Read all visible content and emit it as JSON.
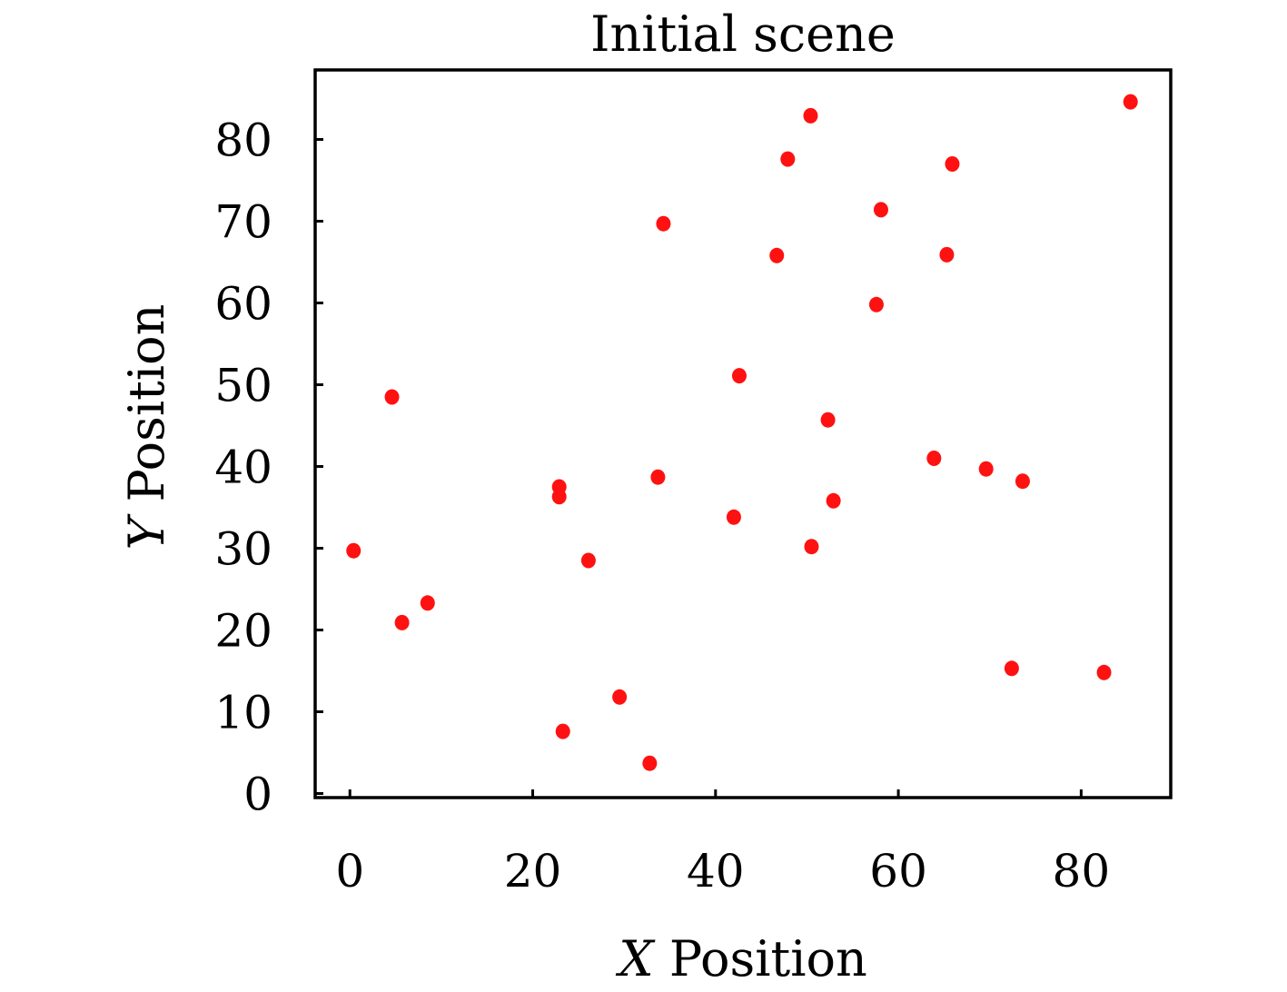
{
  "chart_data": {
    "type": "scatter",
    "title": "Initial scene",
    "xlabel_var": "X",
    "xlabel_rest": " Position",
    "ylabel_var": "Y",
    "ylabel_rest": " Position",
    "xlim": [
      -3.8,
      89.8
    ],
    "ylim": [
      -0.5,
      88.5
    ],
    "xticks": [
      0,
      20,
      40,
      60,
      80
    ],
    "yticks": [
      0,
      10,
      20,
      30,
      40,
      50,
      60,
      70,
      80
    ],
    "grid": false,
    "legend": "none",
    "point_color": "#ff1111",
    "series": [
      {
        "points": [
          {
            "x": 0.4,
            "y": 29.7
          },
          {
            "x": 4.6,
            "y": 48.5
          },
          {
            "x": 5.7,
            "y": 20.9
          },
          {
            "x": 8.5,
            "y": 23.3
          },
          {
            "x": 22.9,
            "y": 37.5
          },
          {
            "x": 22.9,
            "y": 36.3
          },
          {
            "x": 23.3,
            "y": 7.6
          },
          {
            "x": 26.1,
            "y": 28.5
          },
          {
            "x": 29.5,
            "y": 11.8
          },
          {
            "x": 32.8,
            "y": 3.7
          },
          {
            "x": 33.7,
            "y": 38.7
          },
          {
            "x": 34.3,
            "y": 69.7
          },
          {
            "x": 42.0,
            "y": 33.8
          },
          {
            "x": 42.6,
            "y": 51.1
          },
          {
            "x": 46.7,
            "y": 65.8
          },
          {
            "x": 47.9,
            "y": 77.6
          },
          {
            "x": 50.4,
            "y": 82.9
          },
          {
            "x": 50.5,
            "y": 30.2
          },
          {
            "x": 52.3,
            "y": 45.7
          },
          {
            "x": 52.9,
            "y": 35.8
          },
          {
            "x": 57.6,
            "y": 59.8
          },
          {
            "x": 58.1,
            "y": 71.4
          },
          {
            "x": 63.9,
            "y": 41.0
          },
          {
            "x": 65.3,
            "y": 65.9
          },
          {
            "x": 65.9,
            "y": 77.0
          },
          {
            "x": 69.6,
            "y": 39.7
          },
          {
            "x": 72.4,
            "y": 15.3
          },
          {
            "x": 73.6,
            "y": 38.2
          },
          {
            "x": 82.5,
            "y": 14.8
          },
          {
            "x": 85.4,
            "y": 84.6
          }
        ]
      }
    ]
  }
}
